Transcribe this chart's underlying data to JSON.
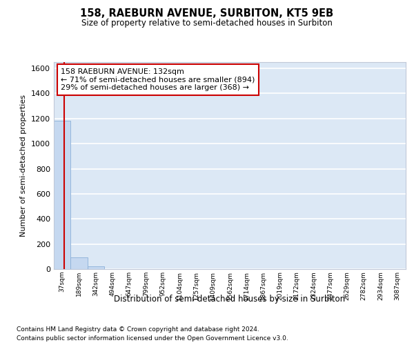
{
  "title": "158, RAEBURN AVENUE, SURBITON, KT5 9EB",
  "subtitle": "Size of property relative to semi-detached houses in Surbiton",
  "xlabel": "Distribution of semi-detached houses by size in Surbiton",
  "ylabel": "Number of semi-detached properties",
  "footnote1": "Contains HM Land Registry data © Crown copyright and database right 2024.",
  "footnote2": "Contains public sector information licensed under the Open Government Licence v3.0.",
  "bin_labels": [
    "37sqm",
    "189sqm",
    "342sqm",
    "494sqm",
    "647sqm",
    "799sqm",
    "952sqm",
    "1104sqm",
    "1257sqm",
    "1409sqm",
    "1562sqm",
    "1714sqm",
    "1867sqm",
    "2019sqm",
    "2172sqm",
    "2324sqm",
    "2477sqm",
    "2629sqm",
    "2782sqm",
    "2934sqm",
    "3087sqm"
  ],
  "bar_heights": [
    1185,
    95,
    20,
    2,
    1,
    0,
    0,
    0,
    0,
    0,
    0,
    0,
    0,
    0,
    0,
    0,
    0,
    0,
    0,
    0,
    0
  ],
  "bar_color": "#c5d8f0",
  "bar_edge_color": "#8ab0d8",
  "plot_bg_color": "#dce8f5",
  "fig_bg_color": "#ffffff",
  "ylim": [
    0,
    1650
  ],
  "yticks": [
    0,
    200,
    400,
    600,
    800,
    1000,
    1200,
    1400,
    1600
  ],
  "annotation_title": "158 RAEBURN AVENUE: 132sqm",
  "annotation_line1": "← 71% of semi-detached houses are smaller (894)",
  "annotation_line2": "29% of semi-detached houses are larger (368) →",
  "red_line_color": "#cc0000",
  "annotation_box_facecolor": "#ffffff",
  "annotation_box_edgecolor": "#cc0000",
  "grid_color": "#ffffff",
  "spine_color": "#c0c8d8"
}
